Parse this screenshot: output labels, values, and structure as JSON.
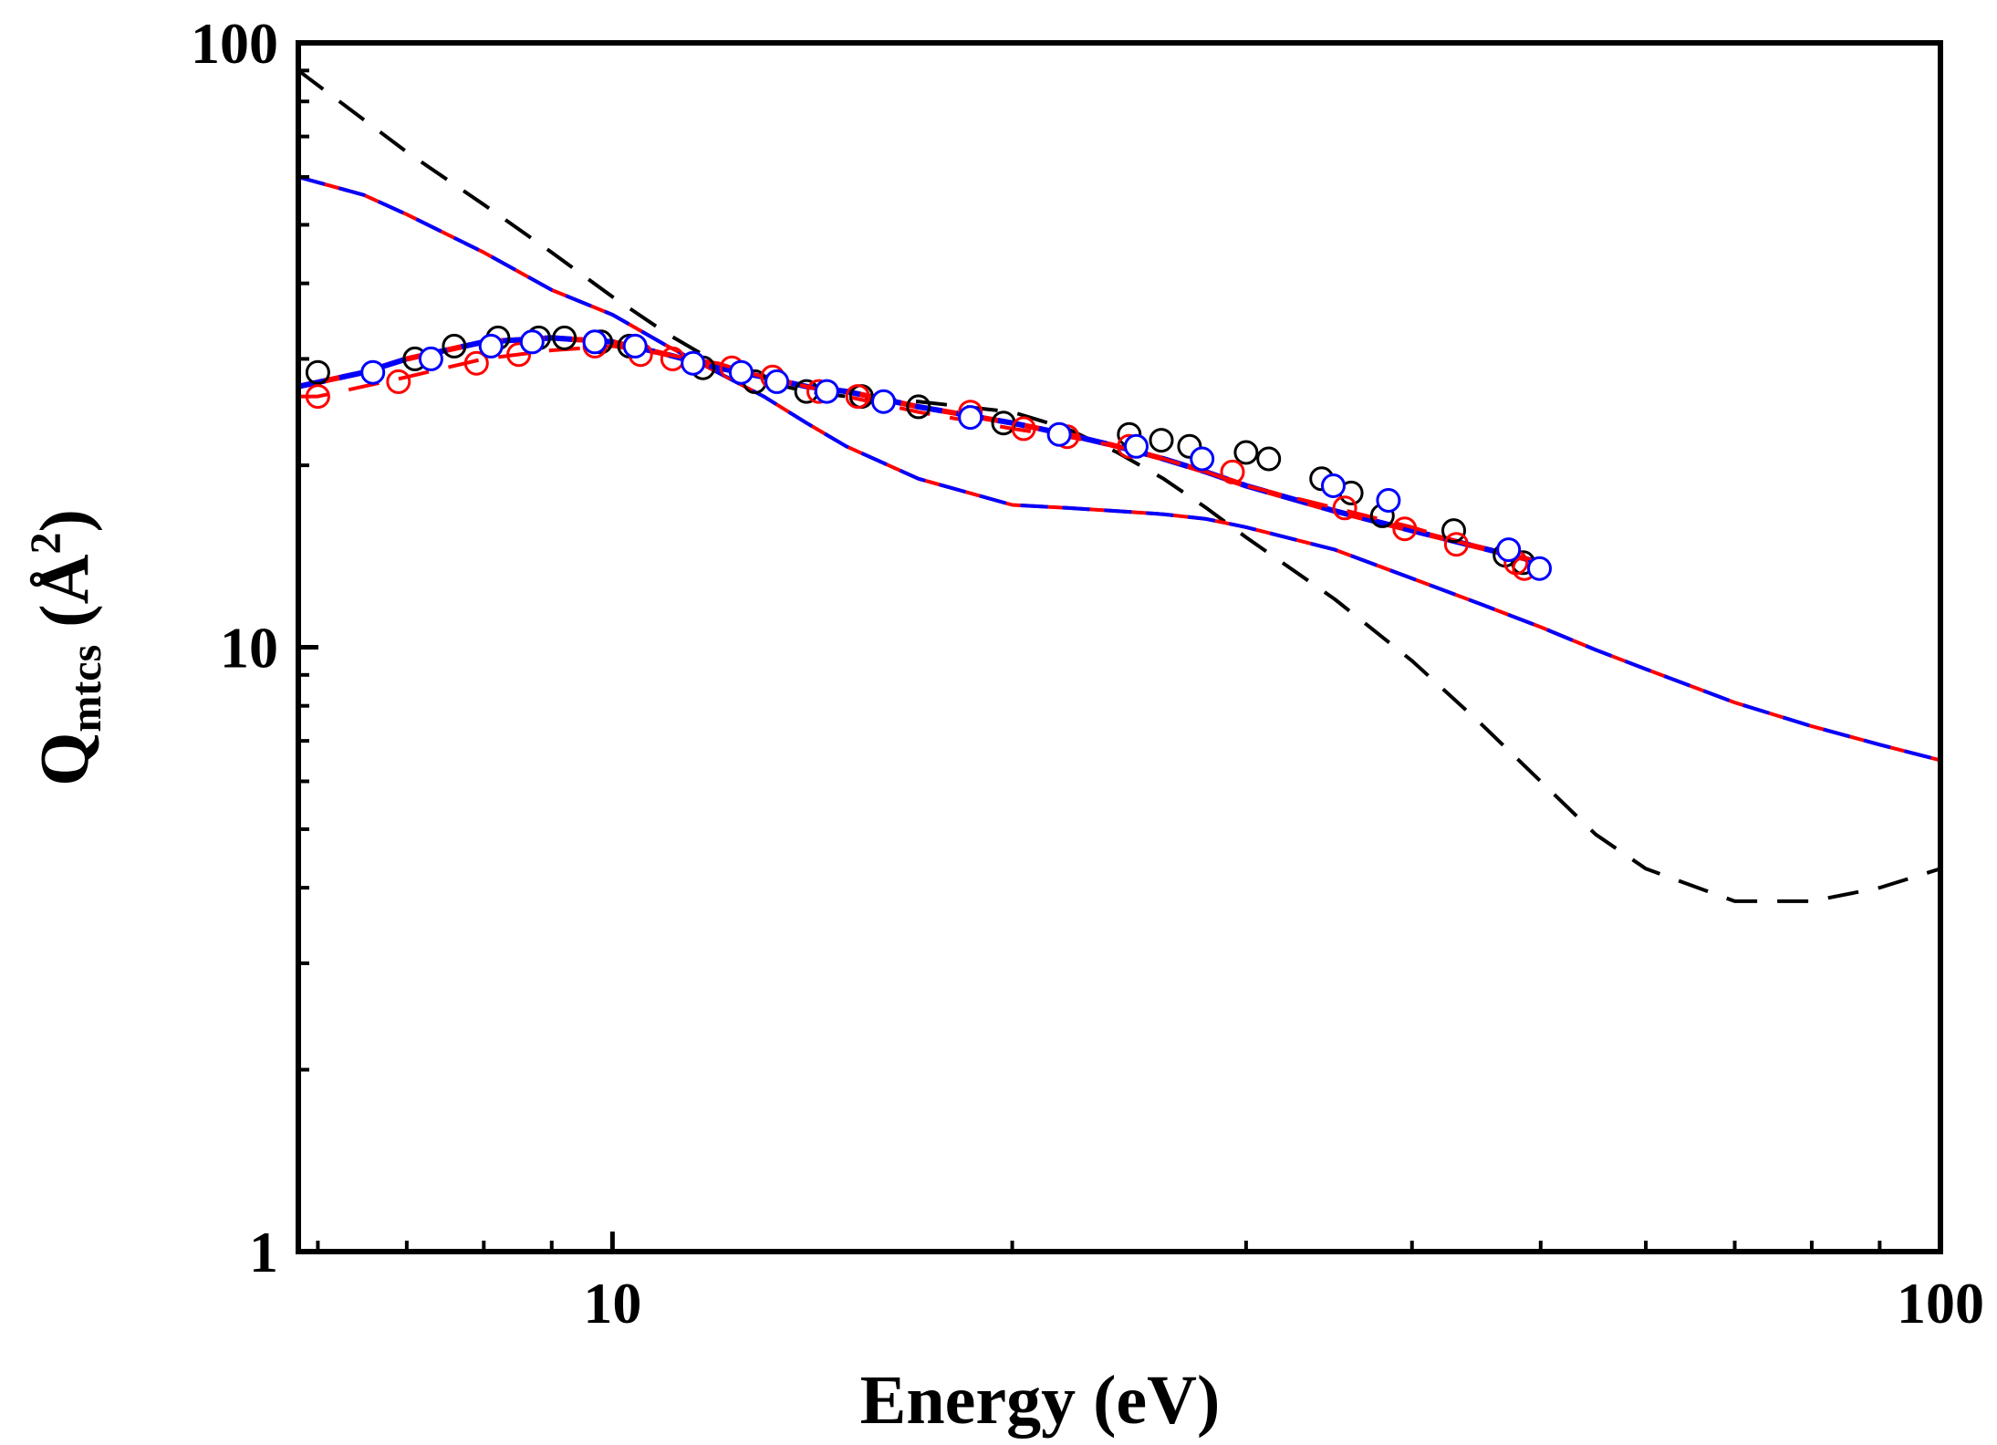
{
  "chart_data": {
    "type": "line",
    "title": "",
    "xlabel": "Energy (eV)",
    "ylabel": {
      "main": "Q",
      "sub": "mtcs",
      "unit_open": " (",
      "unit_symbol": "Å",
      "unit_exp": "2",
      "unit_close": ")"
    },
    "x_scale": "log",
    "y_scale": "log",
    "xlim": [
      5.8,
      100
    ],
    "ylim": [
      1,
      100
    ],
    "x_ticks": [
      {
        "value": 10,
        "label": "10"
      },
      {
        "value": 100,
        "label": "100"
      }
    ],
    "y_ticks": [
      {
        "value": 1,
        "label": "1"
      },
      {
        "value": 10,
        "label": "10"
      },
      {
        "value": 100,
        "label": "100"
      }
    ],
    "grid": false,
    "legend": "none",
    "series": [
      {
        "style": "dashed",
        "color": "#000000",
        "x": [
          5.8,
          7,
          8,
          9,
          10,
          11,
          12,
          13,
          14,
          15,
          17,
          20,
          22,
          24,
          26,
          28,
          30,
          35,
          40,
          45,
          50,
          55,
          60,
          70,
          80,
          90,
          100
        ],
        "y": [
          90,
          66,
          54,
          45,
          38,
          33,
          29.5,
          27.5,
          26.5,
          26,
          25.5,
          24.5,
          23,
          21,
          19,
          17,
          15.2,
          12,
          9.5,
          7.5,
          6,
          4.9,
          4.3,
          3.8,
          3.8,
          4.0,
          4.3
        ]
      },
      {
        "style": "solid-red-blue-dashed",
        "color": "#ff0000",
        "overlay_color": "#0000ff",
        "x": [
          5.8,
          6.5,
          7,
          8,
          9,
          10,
          11,
          12,
          13,
          14,
          15,
          17,
          20,
          22,
          24,
          26,
          28,
          30,
          35,
          40,
          45,
          50,
          55,
          60,
          70,
          80,
          90,
          100
        ],
        "y": [
          60,
          56,
          52,
          45,
          39,
          35.5,
          31.5,
          28.5,
          26,
          23.5,
          21.5,
          19,
          17.2,
          17,
          16.8,
          16.6,
          16.3,
          15.8,
          14.5,
          13,
          11.8,
          10.8,
          9.9,
          9.2,
          8.1,
          7.4,
          6.9,
          6.5
        ]
      },
      {
        "style": "solid-red-blue-dashed-thick",
        "color": "#ff0000",
        "overlay_color": "#0000ff",
        "x": [
          5.8,
          6.5,
          7,
          8,
          9,
          10,
          11,
          12,
          13,
          14,
          15,
          17,
          20,
          22,
          24,
          26,
          28,
          30,
          35,
          40,
          44,
          50
        ],
        "y": [
          27,
          28.5,
          30,
          32,
          32.5,
          32,
          30.5,
          29,
          28,
          27,
          26.5,
          25,
          23.5,
          22.5,
          21.5,
          20.5,
          19.5,
          18.5,
          16.8,
          15.6,
          14.8,
          13.8
        ]
      },
      {
        "style": "dashed",
        "color": "#ff0000",
        "x": [
          5.8,
          6,
          7,
          8,
          9,
          10,
          11,
          12,
          13,
          14,
          15,
          17,
          20,
          22,
          24,
          26,
          28,
          30,
          35,
          40,
          44,
          50
        ],
        "y": [
          26,
          26,
          28,
          30,
          31,
          31.5,
          30.5,
          29.5,
          28,
          27,
          26,
          24.5,
          23,
          22.3,
          21.5,
          20.5,
          19.5,
          18.5,
          17,
          15.8,
          14.8,
          13.8
        ]
      }
    ],
    "markers": [
      {
        "color": "#000000",
        "fill": "none",
        "x": [
          6.0,
          7.1,
          7.6,
          8.2,
          8.8,
          9.2,
          9.8,
          10.3,
          11.7,
          12.8,
          14.0,
          15.4,
          17.0,
          19.7,
          24.5,
          25.9,
          27.2,
          30.0,
          31.2,
          34.2,
          36.0,
          38.0,
          43.0,
          47.0,
          48.5
        ],
        "y": [
          28.5,
          30,
          31.5,
          32.5,
          32.5,
          32.5,
          32,
          31.5,
          29,
          27.5,
          26.5,
          26,
          25,
          23.5,
          22.5,
          22,
          21.5,
          21,
          20.5,
          19,
          18,
          16.5,
          15.6,
          14.2,
          13.8
        ]
      },
      {
        "color": "#ff0000",
        "fill": "none",
        "x": [
          6.0,
          6.9,
          7.9,
          8.5,
          9.7,
          10.5,
          11.1,
          12.3,
          13.2,
          14.3,
          15.3,
          18.6,
          20.4,
          22.0,
          24.5,
          29.3,
          35.6,
          39.5,
          43.2,
          47.9,
          48.6
        ],
        "y": [
          26,
          27.5,
          29.5,
          30.5,
          31.5,
          30.5,
          30,
          29,
          28,
          26.5,
          26,
          24.5,
          23,
          22.3,
          21.5,
          19.5,
          17,
          15.7,
          14.8,
          13.8,
          13.5
        ]
      },
      {
        "color": "#0000ff",
        "fill": "#ffffff",
        "x": [
          6.6,
          7.3,
          8.1,
          8.7,
          9.7,
          10.4,
          11.5,
          12.5,
          13.3,
          14.5,
          16.0,
          18.6,
          21.7,
          24.8,
          27.8,
          34.9,
          38.4,
          47.3,
          49.9
        ],
        "y": [
          28.5,
          30,
          31.5,
          32,
          32,
          31.5,
          29.5,
          28.5,
          27.5,
          26.5,
          25.5,
          24,
          22.5,
          21.5,
          20.5,
          18.5,
          17.5,
          14.5,
          13.5
        ]
      }
    ]
  }
}
